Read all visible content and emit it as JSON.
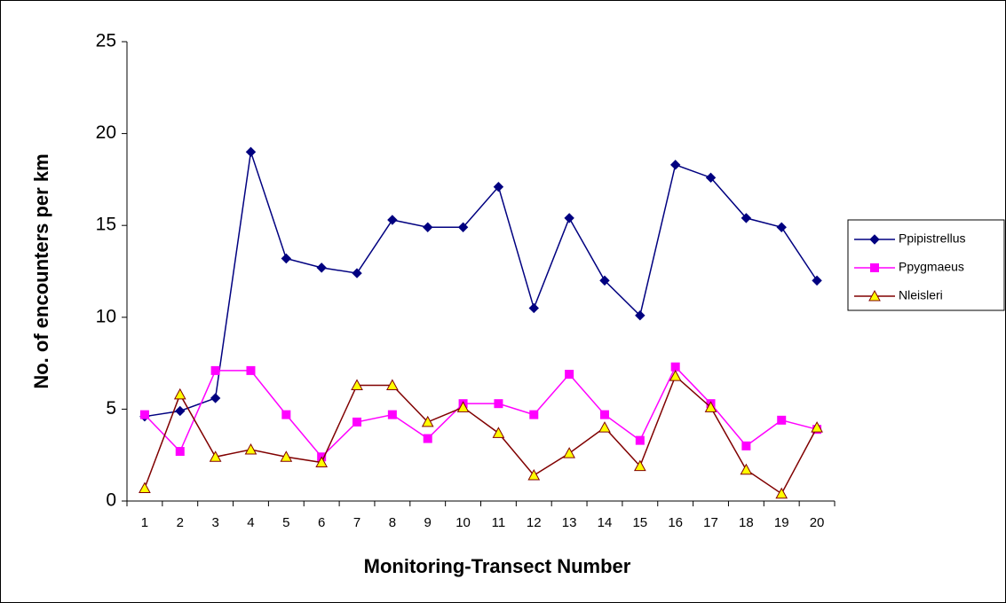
{
  "chart_data": {
    "type": "line",
    "x_label": "Monitoring-Transect Number",
    "y_label": "No. of encounters per km",
    "categories": [
      "1",
      "2",
      "3",
      "4",
      "5",
      "6",
      "7",
      "8",
      "9",
      "10",
      "11",
      "12",
      "13",
      "14",
      "15",
      "16",
      "17",
      "18",
      "19",
      "20"
    ],
    "series": [
      {
        "name": "Ppipistrellus",
        "color": "#000080",
        "marker": "diamond",
        "marker_fill": "#000080",
        "values": [
          4.6,
          4.9,
          5.6,
          19,
          13.2,
          12.7,
          12.4,
          15.3,
          14.9,
          14.9,
          17.1,
          10.5,
          15.4,
          12,
          10.1,
          18.3,
          17.6,
          15.4,
          14.9,
          12
        ]
      },
      {
        "name": "Ppygmaeus",
        "color": "#ff00ff",
        "marker": "square",
        "marker_fill": "#ff00ff",
        "values": [
          4.7,
          2.7,
          7.1,
          7.1,
          4.7,
          2.4,
          4.3,
          4.7,
          3.4,
          5.3,
          5.3,
          4.7,
          6.9,
          4.7,
          3.3,
          7.3,
          5.3,
          3,
          4.4,
          3.9
        ]
      },
      {
        "name": "Nleisleri",
        "color": "#800000",
        "marker": "triangle",
        "marker_fill": "#ffff00",
        "values": [
          0.7,
          5.8,
          2.4,
          2.8,
          2.4,
          2.1,
          6.3,
          6.3,
          4.3,
          5.1,
          3.7,
          1.4,
          2.6,
          4,
          1.9,
          6.8,
          5.1,
          1.7,
          0.4,
          4
        ]
      }
    ],
    "ylim": [
      0,
      25
    ],
    "yticks": [
      0,
      5,
      10,
      15,
      20,
      25
    ],
    "grid": false,
    "legend": "right"
  }
}
